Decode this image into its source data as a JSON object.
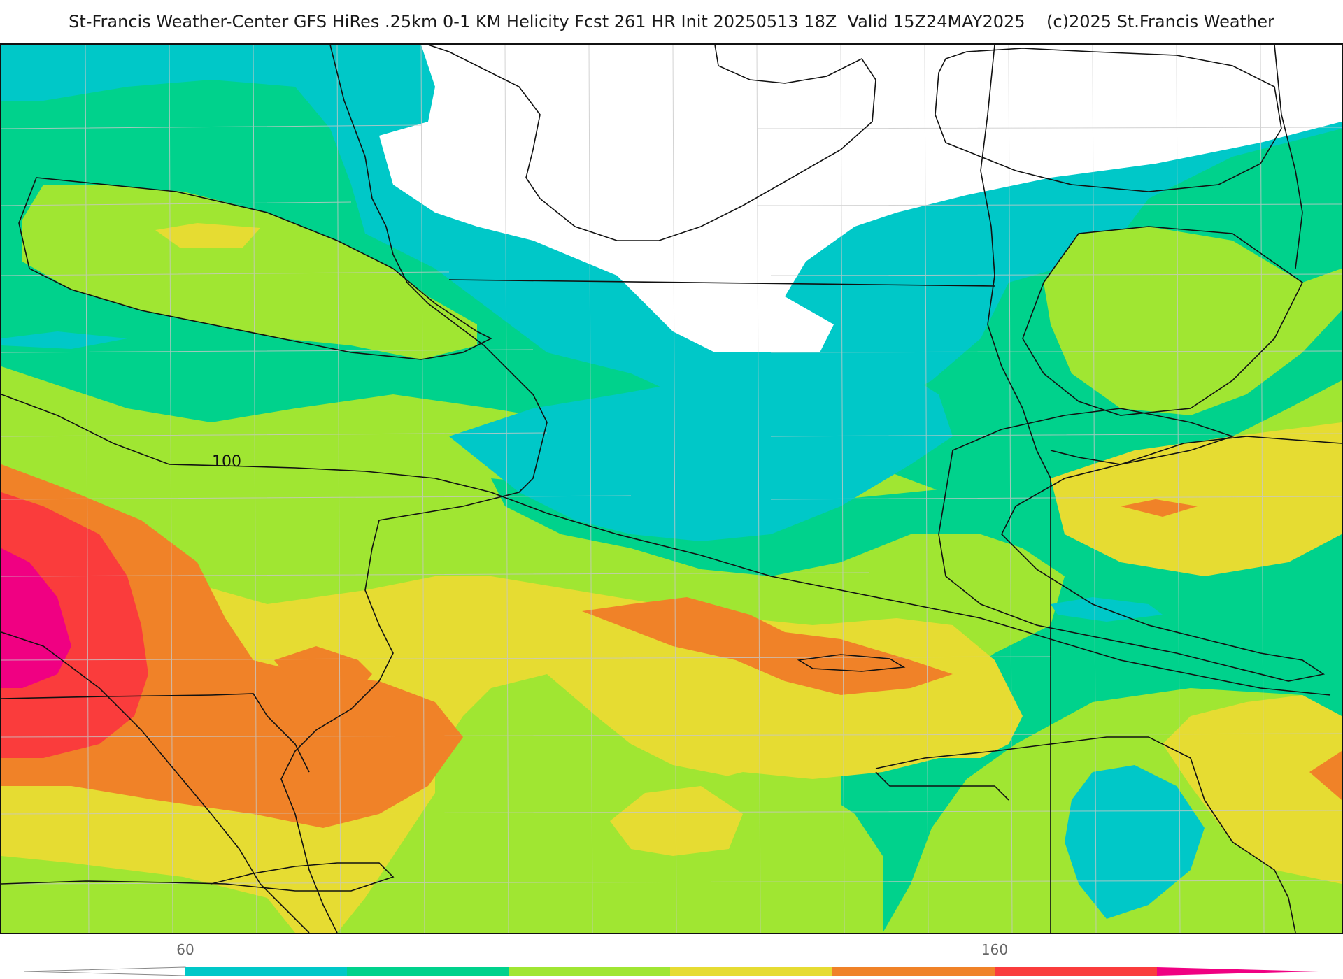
{
  "header": {
    "title": "St-Francis Weather-Center GFS HiRes .25km 0-1 KM Helicity Fcst 261 HR Init 20250513 18Z  Valid 15Z24MAY2025    (c)2025 St.Francis Weather"
  },
  "map": {
    "contour_label": "100",
    "levels": [
      {
        "range": "<60",
        "color": "#ffffff"
      },
      {
        "range": "60-80",
        "color": "#00c8c8"
      },
      {
        "range": "80-100",
        "color": "#00d28c"
      },
      {
        "range": "100-120",
        "color": "#a0e632"
      },
      {
        "range": "120-140",
        "color": "#e6dc32"
      },
      {
        "range": "140-160",
        "color": "#f08228"
      },
      {
        "range": "160-180",
        "color": "#fa3c3c"
      },
      {
        "range": ">180",
        "color": "#f00082"
      }
    ]
  },
  "colorbar": {
    "tick_labels": [
      "60",
      "160"
    ],
    "colors": [
      "#00c8c8",
      "#00d28c",
      "#a0e632",
      "#e6dc32",
      "#f08228",
      "#fa3c3c",
      "#f00082"
    ]
  }
}
